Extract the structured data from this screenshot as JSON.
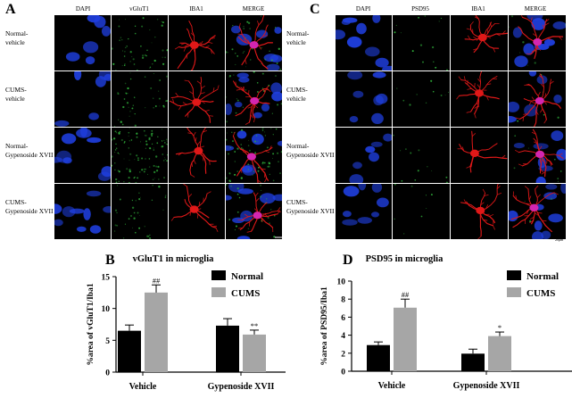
{
  "panels": {
    "A": {
      "letter": "A",
      "columns": [
        "DAPI",
        "vGluT1",
        "IBA1",
        "MERGE"
      ],
      "rows": [
        [
          "Normal-",
          "vehicle"
        ],
        [
          "CUMS-",
          "vehicle"
        ],
        [
          "Normal-",
          "Gypenoside XVII"
        ],
        [
          "CUMS-",
          "Gypenoside XVII"
        ]
      ],
      "scale_label": "20μm"
    },
    "C": {
      "letter": "C",
      "columns": [
        "DAPI",
        "PSD95",
        "IBA1",
        "MERGE"
      ],
      "rows": [
        [
          "Normal-",
          "vehicle"
        ],
        [
          "CUMS-",
          "vehicle"
        ],
        [
          "Normal-",
          "Gypenoside XVII"
        ],
        [
          "CUMS-",
          "Gypenoside XVII"
        ]
      ],
      "scale_label": "20μm"
    },
    "B": {
      "letter": "B"
    },
    "D": {
      "letter": "D"
    }
  },
  "colors": {
    "dapi": "#1f3fe0",
    "vglut": "#2fae3a",
    "iba1": "#e01818",
    "normal_bar": "#000000",
    "cums_bar": "#a6a6a6"
  },
  "chart_data": [
    {
      "type": "bar",
      "title": "vGluT1 in microglia",
      "ylabel": "%area of vGluT1/Iba1",
      "categories": [
        "Vehicle",
        "Gypenoside XVII"
      ],
      "ylim": [
        0,
        15
      ],
      "yticks": [
        0,
        5,
        10,
        15
      ],
      "series": [
        {
          "name": "Normal",
          "values": [
            6.5,
            7.3
          ],
          "errors": [
            0.9,
            1.1
          ],
          "annotations": [
            "",
            ""
          ]
        },
        {
          "name": "CUMS",
          "values": [
            12.5,
            5.9
          ],
          "errors": [
            1.2,
            0.7
          ],
          "annotations": [
            "##",
            "**"
          ]
        }
      ],
      "legend": "top-right"
    },
    {
      "type": "bar",
      "title": "PSD95 in microglia",
      "ylabel": "%area of PSD95/Iba1",
      "categories": [
        "Vehicle",
        "Gypenoside XVII"
      ],
      "ylim": [
        0,
        10
      ],
      "yticks": [
        0,
        2,
        4,
        6,
        8,
        10
      ],
      "series": [
        {
          "name": "Normal",
          "values": [
            2.9,
            1.95
          ],
          "errors": [
            0.35,
            0.5
          ],
          "annotations": [
            "",
            ""
          ]
        },
        {
          "name": "CUMS",
          "values": [
            7.05,
            3.9
          ],
          "errors": [
            0.95,
            0.45
          ],
          "annotations": [
            "##",
            "*"
          ]
        }
      ],
      "legend": "top-right"
    }
  ]
}
